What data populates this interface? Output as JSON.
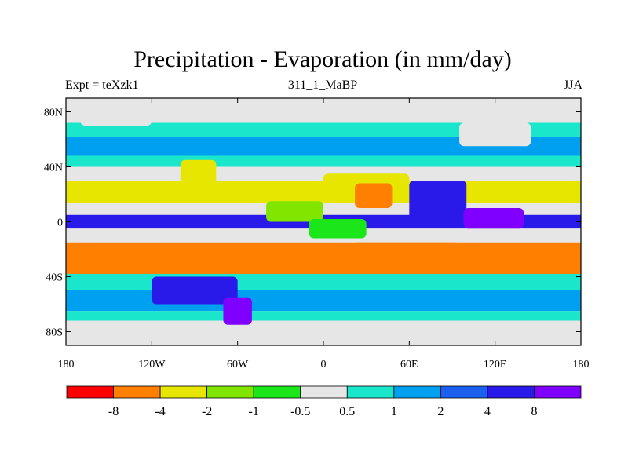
{
  "header": {
    "title": "Precipitation - Evaporation (in mm/day)",
    "left_label": "Expt = teXzk1",
    "center_label": "311_1_MaBP",
    "right_label": "JJA"
  },
  "chart_data": {
    "type": "heatmap",
    "title": "Precipitation - Evaporation (in mm/day)",
    "xlim": [
      -180,
      180
    ],
    "ylim": [
      -90,
      90
    ],
    "x_ticks": [
      {
        "value": -180,
        "label": "180"
      },
      {
        "value": -120,
        "label": "120W"
      },
      {
        "value": -60,
        "label": "60W"
      },
      {
        "value": 0,
        "label": "0"
      },
      {
        "value": 60,
        "label": "60E"
      },
      {
        "value": 120,
        "label": "120E"
      },
      {
        "value": 180,
        "label": "180"
      }
    ],
    "y_ticks": [
      {
        "value": 80,
        "label": "80N"
      },
      {
        "value": 40,
        "label": "40N"
      },
      {
        "value": 0,
        "label": "0"
      },
      {
        "value": -40,
        "label": "40S"
      },
      {
        "value": -80,
        "label": "80S"
      }
    ],
    "colorbar": {
      "colors": [
        "#ff0000",
        "#ff7f00",
        "#e6e600",
        "#80e600",
        "#1ae61a",
        "#e6e6e6",
        "#1ae6cc",
        "#00a0f0",
        "#1a5ff0",
        "#2a1aea",
        "#8000ff"
      ],
      "labels": [
        "-8",
        "-4",
        "-2",
        "-1",
        "-0.5",
        "0.5",
        "1",
        "2",
        "4",
        "8"
      ]
    },
    "bands": [
      {
        "lat_range": [
          72,
          90
        ],
        "class": 5
      },
      {
        "lat_range": [
          62,
          72
        ],
        "class": 6
      },
      {
        "lat_range": [
          48,
          62
        ],
        "class": 7
      },
      {
        "lat_range": [
          40,
          48
        ],
        "class": 6
      },
      {
        "lat_range": [
          30,
          40
        ],
        "class": 5
      },
      {
        "lat_range": [
          14,
          30
        ],
        "class": 2
      },
      {
        "lat_range": [
          5,
          14
        ],
        "class": 5
      },
      {
        "lat_range": [
          -5,
          5
        ],
        "class": 9
      },
      {
        "lat_range": [
          -15,
          -5
        ],
        "class": 5
      },
      {
        "lat_range": [
          -38,
          -15
        ],
        "class": 1
      },
      {
        "lat_range": [
          -50,
          -38
        ],
        "class": 6
      },
      {
        "lat_range": [
          -65,
          -50
        ],
        "class": 7
      },
      {
        "lat_range": [
          -72,
          -65
        ],
        "class": 6
      },
      {
        "lat_range": [
          -90,
          -72
        ],
        "class": 5
      }
    ],
    "patches": [
      {
        "lon_range": [
          -100,
          -75
        ],
        "lat_range": [
          20,
          45
        ],
        "class": 2
      },
      {
        "lon_range": [
          0,
          60
        ],
        "lat_range": [
          15,
          35
        ],
        "class": 2
      },
      {
        "lon_range": [
          22,
          48
        ],
        "lat_range": [
          10,
          28
        ],
        "class": 1
      },
      {
        "lon_range": [
          60,
          100
        ],
        "lat_range": [
          0,
          30
        ],
        "class": 9
      },
      {
        "lon_range": [
          98,
          140
        ],
        "lat_range": [
          -5,
          10
        ],
        "class": 10
      },
      {
        "lon_range": [
          -40,
          0
        ],
        "lat_range": [
          0,
          15
        ],
        "class": 3
      },
      {
        "lon_range": [
          -10,
          30
        ],
        "lat_range": [
          -12,
          2
        ],
        "class": 4
      },
      {
        "lon_range": [
          20,
          95
        ],
        "lat_range": [
          -35,
          -15
        ],
        "class": 1
      },
      {
        "lon_range": [
          -120,
          -60
        ],
        "lat_range": [
          -60,
          -40
        ],
        "class": 9
      },
      {
        "lon_range": [
          -70,
          -50
        ],
        "lat_range": [
          -75,
          -55
        ],
        "class": 10
      },
      {
        "lon_range": [
          95,
          145
        ],
        "lat_range": [
          55,
          72
        ],
        "class": 5
      },
      {
        "lon_range": [
          -170,
          -120
        ],
        "lat_range": [
          70,
          90
        ],
        "class": 5
      }
    ]
  }
}
